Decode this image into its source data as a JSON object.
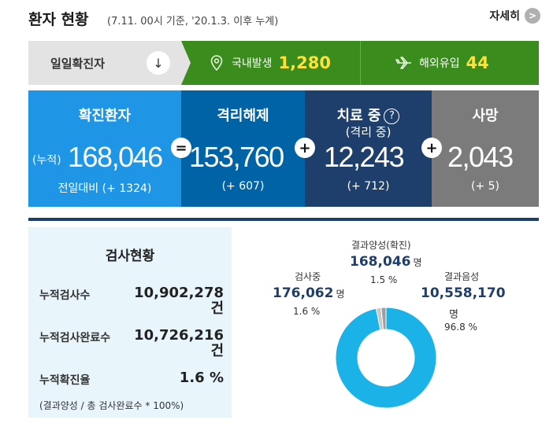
{
  "header": {
    "title": "환자 현황",
    "subtitle": "(7.11. 00시 기준, '20.1.3. 이후 누계)",
    "detail_label": "자세히",
    "detail_icon": ">"
  },
  "daily": {
    "label": "일일확진자",
    "arrow_icon": "↓",
    "domestic": {
      "label": "국내발생",
      "value": "1,280",
      "icon": "location-pin"
    },
    "overseas": {
      "label": "해외유입",
      "value": "44",
      "icon": "airplane"
    }
  },
  "cards": {
    "confirmed": {
      "title": "확진환자",
      "prefix": "(누적)",
      "value": "168,046",
      "change": "전일대비 (+ 1324)"
    },
    "released": {
      "title": "격리해제",
      "value": "153,760",
      "change": "(+ 607)"
    },
    "treatment": {
      "title": "치료 중",
      "subtitle": "(격리 중)",
      "help_icon": "?",
      "value": "12,243",
      "change": "(+ 712)"
    },
    "deaths": {
      "title": "사망",
      "value": "2,043",
      "change": "(+ 5)"
    },
    "op_equals": "=",
    "op_plus": "+"
  },
  "tests": {
    "title": "검사현황",
    "rows": [
      {
        "label": "누적검사수",
        "value": "10,902,278",
        "unit": "건"
      },
      {
        "label": "누적검사완료수",
        "value": "10,726,216",
        "unit": "건"
      },
      {
        "label": "누적확진율",
        "value": "1.6 %"
      }
    ],
    "note": "(결과양성 / 총 검사완료수 * 100%)"
  },
  "chart_data": {
    "type": "pie",
    "slices": [
      {
        "label": "결과음성",
        "value": 10558170,
        "unit": "명",
        "percent": "96.8 %",
        "color": "#1bb2e8"
      },
      {
        "label": "검사중",
        "value": 176062,
        "unit": "명",
        "percent": "1.6 %",
        "color": "#c8c8c8"
      },
      {
        "label": "결과양성(확진)",
        "value": 168046,
        "unit": "명",
        "percent": "1.5 %",
        "color": "#9e9e9e"
      }
    ],
    "display": {
      "negative": {
        "label": "결과음성",
        "value": "10,558,170",
        "unit": "명",
        "percent": "96.8 %"
      },
      "testing": {
        "label": "검사중",
        "value": "176,062",
        "unit": "명",
        "percent": "1.6 %"
      },
      "positive": {
        "label": "결과양성(확진)",
        "value": "168,046",
        "unit": "명",
        "percent": "1.5 %"
      }
    }
  }
}
